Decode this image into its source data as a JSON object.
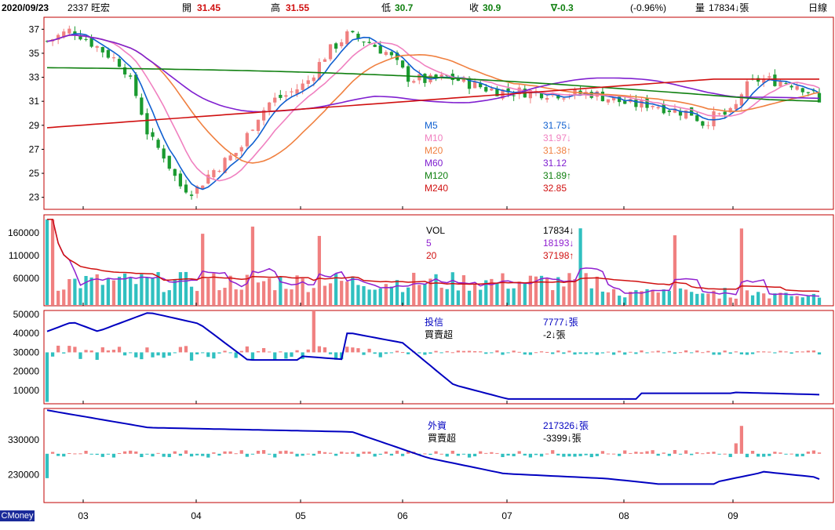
{
  "header": {
    "date": "2020/09/23",
    "stock": "2337 旺宏",
    "open_label": "開",
    "open_value": "31.45",
    "high_label": "高",
    "high_value": "31.55",
    "low_label": "低",
    "low_value": "30.7",
    "close_label": "收",
    "close_value": "30.9",
    "change": "∇-0.3",
    "change_pct": "(-0.96%)",
    "volume_label": "量",
    "volume_value": "17834↓張",
    "period": "日線"
  },
  "colors": {
    "up": "#f08080",
    "down": "#1a9a30",
    "vol_up": "#f08080",
    "vol_down": "#30c0c0",
    "m5": "#1060d0",
    "m10": "#f080c0",
    "m20": "#f08040",
    "m60": "#8020d0",
    "m120": "#108010",
    "m240": "#d01010",
    "vol5": "#9020d0",
    "vol20": "#d01010",
    "frame": "#c00000",
    "hold": "#0000c0"
  },
  "brand": "CMoney",
  "chart_data": [
    {
      "type": "candlestick",
      "ylim": [
        22,
        38
      ],
      "y_ticks": [
        "37",
        "35",
        "33",
        "31",
        "29",
        "27",
        "25",
        "23"
      ],
      "x_ticks": [
        "03",
        "04",
        "05",
        "06",
        "07",
        "08",
        "09"
      ],
      "legend": [
        {
          "name": "M5",
          "value": "31.75↓",
          "color": "#1060d0"
        },
        {
          "name": "M10",
          "value": "31.97↓",
          "color": "#f080c0"
        },
        {
          "name": "M20",
          "value": "31.38↑",
          "color": "#f08040"
        },
        {
          "name": "M60",
          "value": "31.12",
          "color": "#8020d0"
        },
        {
          "name": "M120",
          "value": "31.89↑",
          "color": "#108010"
        },
        {
          "name": "M240",
          "value": "32.85",
          "color": "#d01010"
        }
      ],
      "last_close": 30.9
    },
    {
      "type": "bar",
      "y_ticks": [
        "160000",
        "110000",
        "60000"
      ],
      "ylim": [
        0,
        200000
      ],
      "legend": [
        {
          "name": "VOL",
          "value": "17834↓",
          "color": "#000000"
        },
        {
          "name": "5",
          "value": "18193↓",
          "color": "#9020d0"
        },
        {
          "name": "20",
          "value": "37198↑",
          "color": "#d01010"
        }
      ]
    },
    {
      "type": "bar+line",
      "y_ticks": [
        "50000",
        "40000",
        "30000",
        "20000",
        "10000"
      ],
      "ylim": [
        3000,
        52000
      ],
      "legend": [
        {
          "name": "投信",
          "value": "7777↓張",
          "color": "#0000c0"
        },
        {
          "name": "買賣超",
          "value": "-2↓張",
          "color": "#000000"
        }
      ]
    },
    {
      "type": "bar+line",
      "y_ticks": [
        "330000",
        "230000"
      ],
      "ylim": [
        150000,
        420000
      ],
      "legend": [
        {
          "name": "外資",
          "value": "217326↓張",
          "color": "#0000c0"
        },
        {
          "name": "買賣超",
          "value": "-3399↓張",
          "color": "#000000"
        }
      ]
    }
  ]
}
